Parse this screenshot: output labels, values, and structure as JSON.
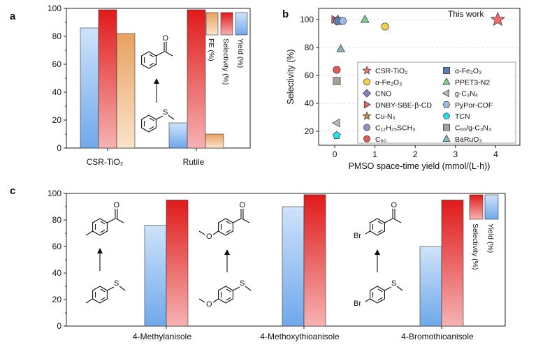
{
  "panels": {
    "a": "a",
    "b": "b",
    "c": "c"
  },
  "molecule_labels": {
    "oxygen": "O",
    "sulfur": "S",
    "bromine": "Br"
  },
  "colors": {
    "yield_top": "#cfe3fa",
    "yield_bottom": "#6fa8ea",
    "selectivity_top": "#e01a1a",
    "selectivity_bottom": "#f6b2b2",
    "fe_top": "#e8a160",
    "fe_bottom": "#fbe4cc"
  },
  "chart_data": [
    {
      "panel": "a",
      "type": "bar",
      "categories": [
        "CSR-TiO₂",
        "Rutile"
      ],
      "series": [
        {
          "name": "Yield (%)",
          "values": [
            86,
            18
          ]
        },
        {
          "name": "Selectivity (%)",
          "values": [
            99,
            99
          ]
        },
        {
          "name": "FE (%)",
          "values": [
            82,
            10
          ]
        }
      ],
      "ylim": [
        0,
        100
      ],
      "yticks": [
        "0",
        "20",
        "40",
        "60",
        "80",
        "100"
      ],
      "legend_placement": "top-right"
    },
    {
      "panel": "b",
      "type": "scatter",
      "xlabel": "PMSO space-time yield (mmol/(L·h))",
      "ylabel": "Selectivity (%)",
      "xlim": [
        -0.4,
        4.6
      ],
      "ylim": [
        10,
        108
      ],
      "xticks": [
        "0",
        "1",
        "2",
        "3",
        "4"
      ],
      "yticks": [
        "20",
        "40",
        "60",
        "80",
        "100"
      ],
      "grid": "horizontal dashed",
      "annotation": "This work",
      "series": [
        {
          "name": "CSR-TiO₂",
          "marker": "star",
          "color": "#f26d6d",
          "x": 4.05,
          "y": 100
        },
        {
          "name": "α-Fe₂O₃",
          "marker": "circle",
          "color": "#f5d04a",
          "x": 1.25,
          "y": 95
        },
        {
          "name": "CNO",
          "marker": "diamond",
          "color": "#8c7bbf",
          "x": 0.05,
          "y": 99
        },
        {
          "name": "DNBY-SBE-β-CD",
          "marker": "triangle-right",
          "color": "#e2656e",
          "x": 0.0,
          "y": 100
        },
        {
          "name": "Cu-N₃",
          "marker": "star",
          "color": "#c48a3e",
          "x": 0.08,
          "y": 100
        },
        {
          "name": "C₁₂H₂₅SCH₃",
          "marker": "circle",
          "color": "#8f93cc",
          "x": 0.06,
          "y": 99
        },
        {
          "name": "C₆₀",
          "marker": "circle",
          "color": "#df5a5a",
          "x": 0.05,
          "y": 64
        },
        {
          "name": "α-Fe₂O₃",
          "marker": "square",
          "color": "#5a7fb6",
          "x": 0.1,
          "y": 99
        },
        {
          "name": "PPET3-N2",
          "marker": "triangle-up",
          "color": "#7ccf8e",
          "x": 0.75,
          "y": 100
        },
        {
          "name": "g-C₃N₄",
          "marker": "triangle-left",
          "color": "#b7b7b7",
          "x": 0.05,
          "y": 26
        },
        {
          "name": "PyPor-COF",
          "marker": "hexagon",
          "color": "#9cbbe8",
          "x": 0.2,
          "y": 99
        },
        {
          "name": "TCN",
          "marker": "pentagon",
          "color": "#27e0e6",
          "x": 0.05,
          "y": 17
        },
        {
          "name": "C₆₀/g-C₃N₄",
          "marker": "square",
          "color": "#a79e94",
          "x": 0.05,
          "y": 56
        },
        {
          "name": "BaRuO₃",
          "marker": "triangle-up",
          "color": "#82b7b5",
          "x": 0.15,
          "y": 79
        }
      ],
      "legend_placement": "bottom-center"
    },
    {
      "panel": "c",
      "type": "bar",
      "categories": [
        "4-Methylanisole",
        "4-Methoxythioanisole",
        "4-Bromothioanisole"
      ],
      "series": [
        {
          "name": "Yield (%)",
          "values": [
            76,
            90,
            60
          ]
        },
        {
          "name": "Selectivity (%)",
          "values": [
            95,
            99,
            95
          ]
        }
      ],
      "ylim": [
        0,
        100
      ],
      "yticks": [
        "0",
        "20",
        "40",
        "60",
        "80",
        "100"
      ],
      "legend_placement": "top-right"
    }
  ]
}
